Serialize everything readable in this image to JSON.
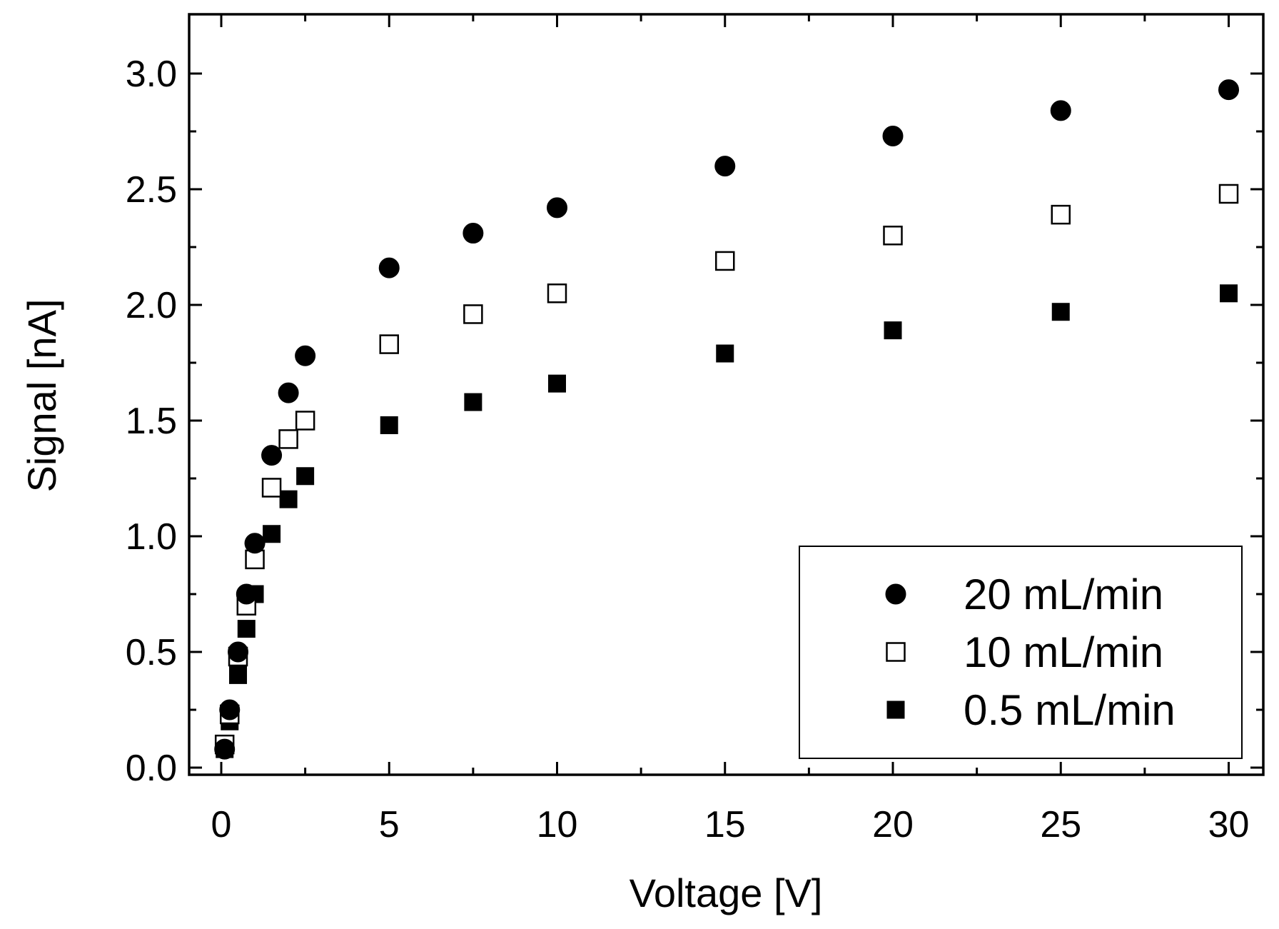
{
  "chart_data": {
    "type": "scatter",
    "title": "",
    "xlabel": "Voltage [V]",
    "ylabel": "Signal [nA]",
    "xlim": [
      -1,
      30.5
    ],
    "ylim": [
      -0.05,
      3.25
    ],
    "xticks": [
      0,
      5,
      10,
      15,
      20,
      25,
      30
    ],
    "xtick_labels": [
      "0",
      "5",
      "10",
      "15",
      "20",
      "25",
      "30"
    ],
    "xminor": [
      2.5,
      7.5,
      12.5,
      17.5,
      22.5,
      27.5
    ],
    "yticks": [
      0.0,
      0.5,
      1.0,
      1.5,
      2.0,
      2.5,
      3.0
    ],
    "ytick_labels": [
      "0.0",
      "0.5",
      "1.0",
      "1.5",
      "2.0",
      "2.5",
      "3.0"
    ],
    "yminor": [
      0.25,
      0.75,
      1.25,
      1.75,
      2.25,
      2.75
    ],
    "grid": false,
    "legend_position": "bottom-right",
    "series": [
      {
        "name": "20 mL/min",
        "marker": "filled-circle",
        "color": "#000000",
        "x": [
          0.1,
          0.25,
          0.5,
          0.75,
          1.0,
          1.5,
          2.0,
          2.5,
          5,
          7.5,
          10,
          15,
          20,
          25,
          30
        ],
        "y": [
          0.08,
          0.25,
          0.5,
          0.75,
          0.97,
          1.35,
          1.62,
          1.78,
          2.16,
          2.31,
          2.42,
          2.6,
          2.73,
          2.84,
          2.93
        ]
      },
      {
        "name": "10 mL/min",
        "marker": "open-square",
        "color": "#000000",
        "x": [
          0.1,
          0.25,
          0.5,
          0.75,
          1.0,
          1.5,
          2.0,
          2.5,
          5,
          7.5,
          10,
          15,
          20,
          25,
          30
        ],
        "y": [
          0.1,
          0.23,
          0.48,
          0.7,
          0.9,
          1.21,
          1.42,
          1.5,
          1.83,
          1.96,
          2.05,
          2.19,
          2.3,
          2.39,
          2.48
        ]
      },
      {
        "name": "0.5 mL/min",
        "marker": "filled-square",
        "color": "#000000",
        "x": [
          0.1,
          0.25,
          0.5,
          0.75,
          1.0,
          1.5,
          2.0,
          2.5,
          5,
          7.5,
          10,
          15,
          20,
          25,
          30
        ],
        "y": [
          0.08,
          0.2,
          0.4,
          0.6,
          0.75,
          1.01,
          1.16,
          1.26,
          1.48,
          1.58,
          1.66,
          1.79,
          1.89,
          1.97,
          2.05
        ]
      }
    ]
  }
}
